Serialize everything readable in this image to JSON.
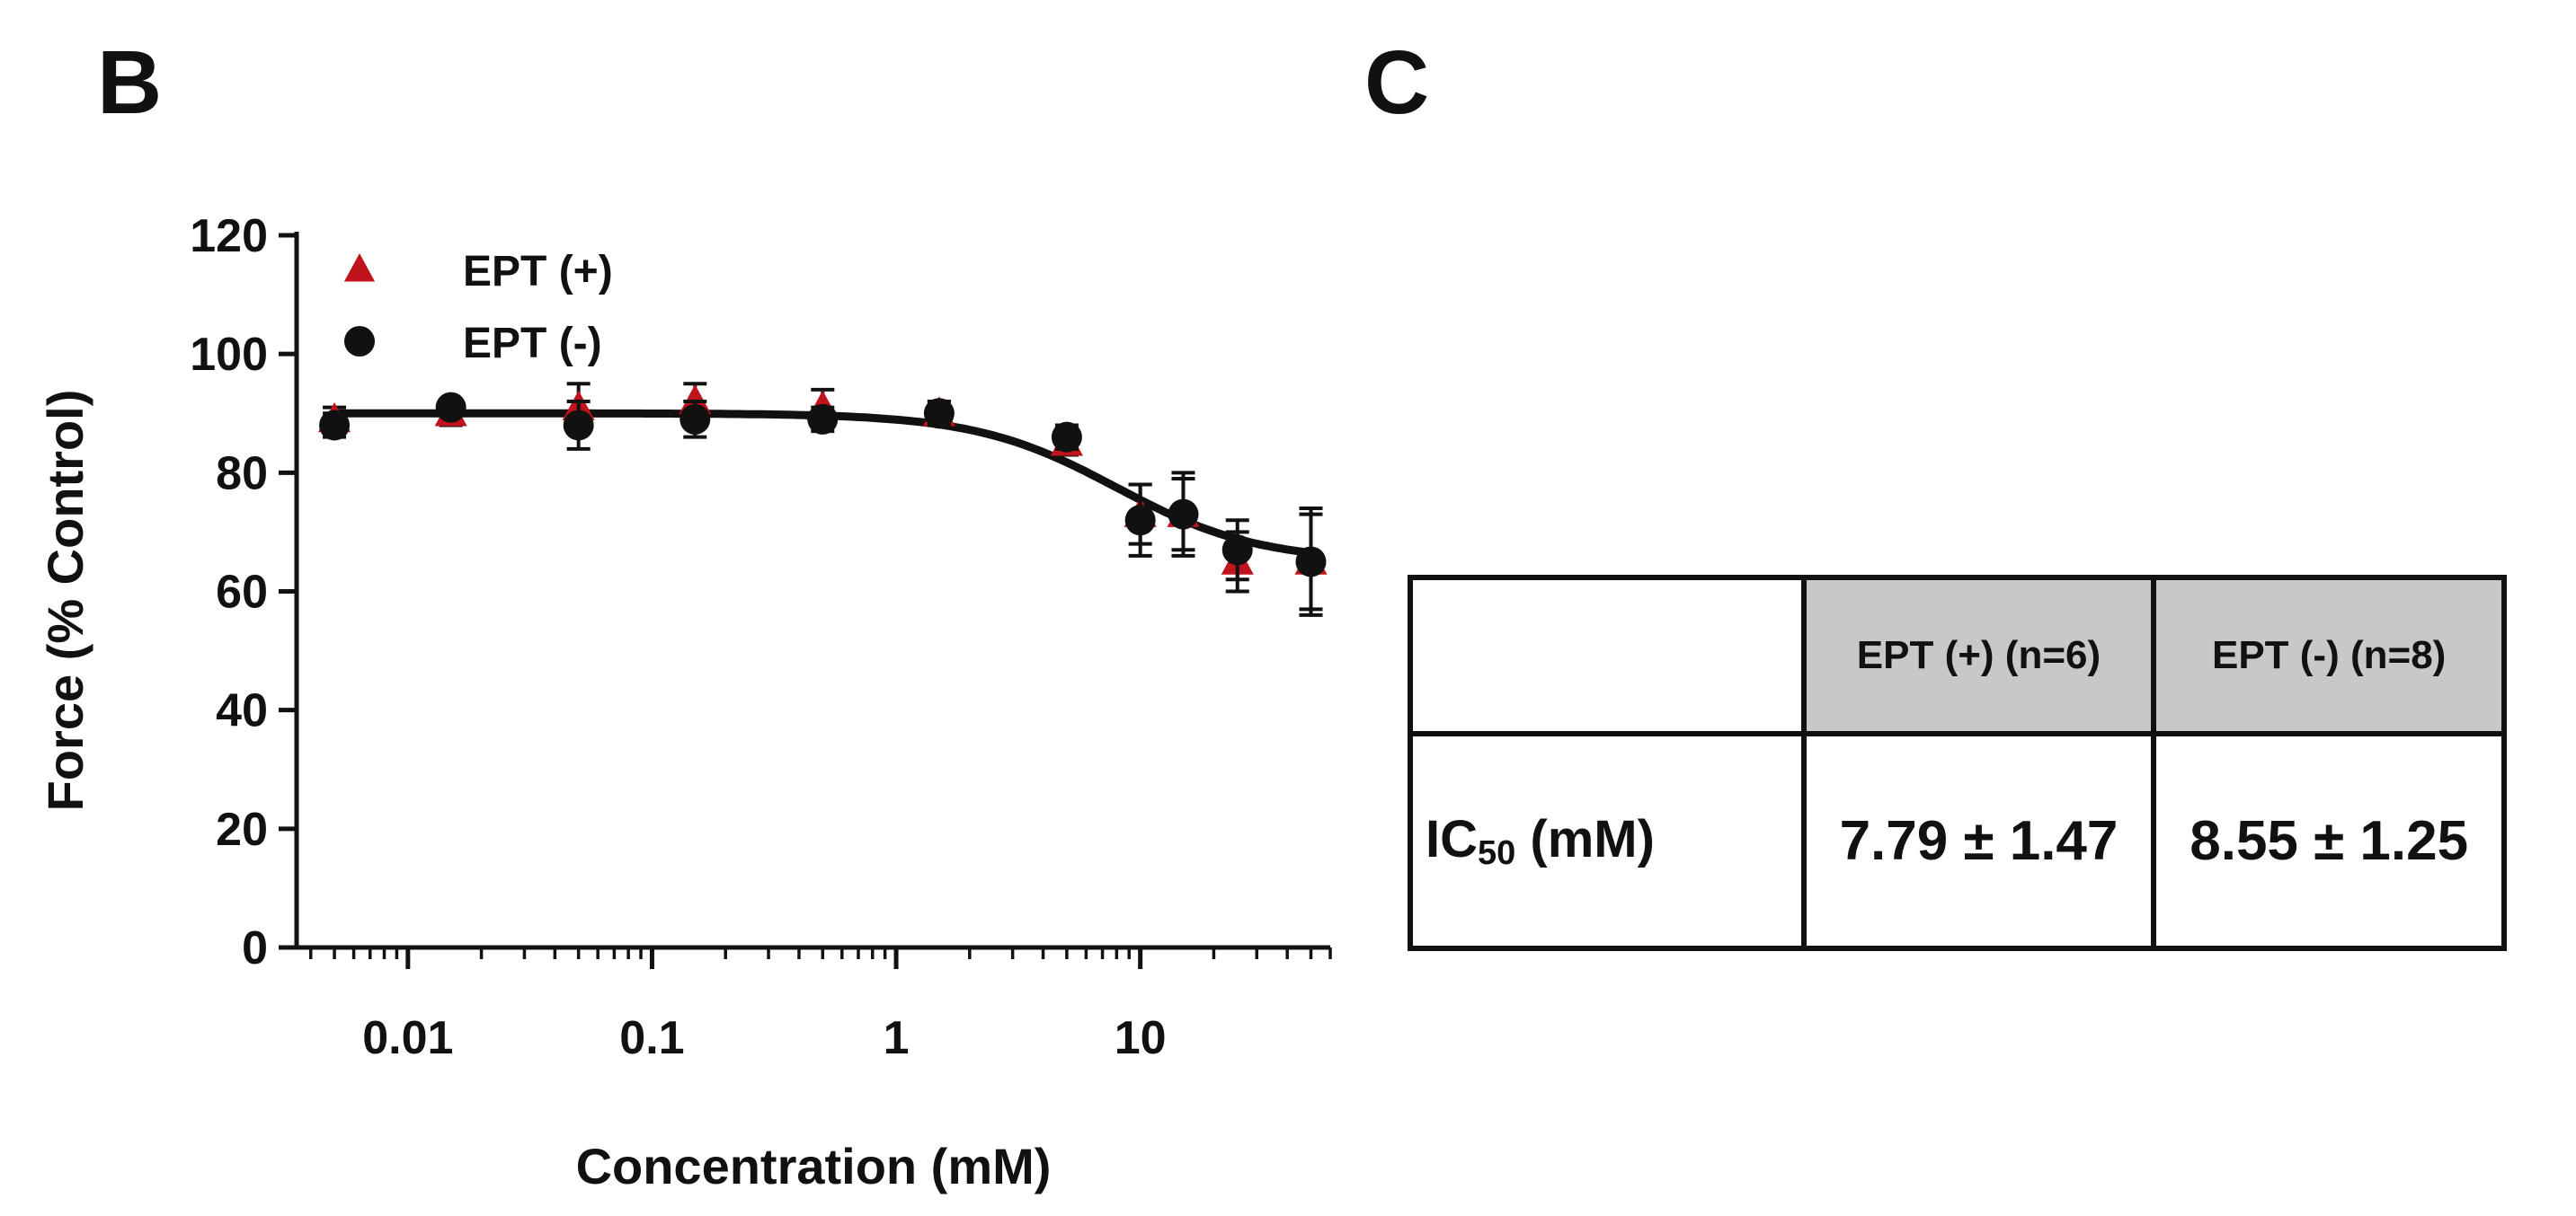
{
  "panel_labels": {
    "b": "B",
    "c": "C"
  },
  "colors": {
    "ept_plus": "#c0141c",
    "ept_minus": "#111111",
    "table_header_bg": "#c8c8c8"
  },
  "chart_data": {
    "type": "scatter",
    "xscale": "log",
    "xlabel": "Concentration (mM)",
    "ylabel": "Force (% Control)",
    "ylim": [
      0,
      120
    ],
    "yticks": [
      0,
      20,
      40,
      60,
      80,
      100,
      120
    ],
    "xticks": [
      0.01,
      0.1,
      1,
      10
    ],
    "xtick_labels": [
      "0.01",
      "0.1",
      "1",
      "10"
    ],
    "legend_position": "top-left",
    "series": [
      {
        "name": "EPT (+)",
        "marker": "triangle",
        "color": "#c0141c",
        "x": [
          0.005,
          0.015,
          0.05,
          0.15,
          0.5,
          1.5,
          5,
          10,
          15,
          25,
          50
        ],
        "y": [
          89,
          90,
          91,
          92,
          91,
          90,
          85,
          73,
          73,
          65,
          65
        ],
        "err": [
          2,
          2,
          4,
          3,
          3,
          2,
          2,
          5,
          6,
          5,
          8
        ]
      },
      {
        "name": "EPT (-)",
        "marker": "circle",
        "color": "#111111",
        "x": [
          0.005,
          0.015,
          0.05,
          0.15,
          0.5,
          1.5,
          5,
          10,
          15,
          25,
          50
        ],
        "y": [
          88,
          91,
          88,
          89,
          89,
          90,
          86,
          72,
          73,
          67,
          65
        ],
        "err": [
          2,
          1,
          4,
          3,
          2,
          2,
          2,
          6,
          7,
          5,
          9
        ]
      }
    ],
    "fit_curve": {
      "top": 90,
      "bottom": 65,
      "ic50": 8,
      "hill": 1.5
    }
  },
  "ic50_table": {
    "headers": [
      "",
      "EPT (+) (n=6)",
      "EPT (-) (n=8)"
    ],
    "row_label_main": "IC",
    "row_label_sub": "50",
    "row_label_unit": " (mM)",
    "values": [
      "7.79 ± 1.47",
      "8.55 ± 1.25"
    ]
  }
}
